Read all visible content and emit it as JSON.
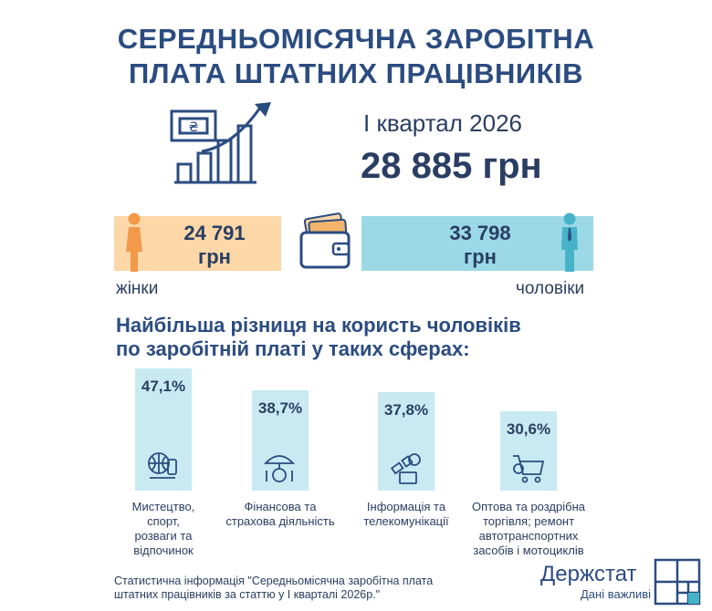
{
  "title": {
    "line1": "СЕРЕДНЬОМІСЯЧНА ЗАРОБІТНА",
    "line2": "ПЛАТА ШТАТНИХ ПРАЦІВНИКІВ"
  },
  "summary": {
    "period": "І квартал 2026",
    "total": "28 885 грн"
  },
  "gender": {
    "women": {
      "value": "24 791",
      "unit": "грн",
      "label": "жінки"
    },
    "men": {
      "value": "33 798",
      "unit": "грн",
      "label": "чоловіки"
    }
  },
  "difference_heading": {
    "line1": "Найбільша різниця на користь чоловіків",
    "line2": "по заробітній платі у таких сферах:"
  },
  "chart_data": {
    "type": "bar",
    "categories": [
      "Мистецтво, спорт, розваги та відпочинок",
      "Фінансова та страхова діяльність",
      "Інформація та телекомунікації",
      "Оптова та роздрібна торгівля; ремонт автотранспортних засобів і мотоциклів"
    ],
    "values": [
      47.1,
      38.7,
      37.8,
      30.6
    ],
    "value_labels": [
      "47,1%",
      "38,7%",
      "37,8%",
      "30,6%"
    ],
    "category_lines": [
      [
        "Мистецтво,",
        "спорт,",
        "розваги та",
        "відпочинок"
      ],
      [
        "Фінансова та",
        "страхова діяльність"
      ],
      [
        "Інформація та",
        "телекомунікації"
      ],
      [
        "Оптова та роздрібна",
        "торгівля; ремонт",
        "автотранспортних",
        "засобів і мотоциклів"
      ]
    ],
    "icons": [
      "sport-icon",
      "umbrella-coin-icon",
      "satellite-icon",
      "shopping-cart-icon"
    ],
    "ylim": [
      0,
      50
    ],
    "grid": false
  },
  "footnote": {
    "line1": "Статистична інформація \"Середньомісячна заробітна плата",
    "line2": "штатних працівників за статтю у І кварталі 2026р.\""
  },
  "brand": {
    "name": "Держстат",
    "slogan": "Дані важливі"
  },
  "colors": {
    "navy": "#2b4c80",
    "women_box": "#fcd7a8",
    "men_box": "#9bd9e6",
    "bar": "#c9eaf2",
    "woman_figure": "#f2994a",
    "man_figure": "#46b3c9"
  },
  "icons": {
    "header": "salary-growth-icon",
    "wallet": "wallet-icon",
    "woman": "woman-icon",
    "man": "man-icon",
    "logo": "dershstat-logo-icon"
  }
}
